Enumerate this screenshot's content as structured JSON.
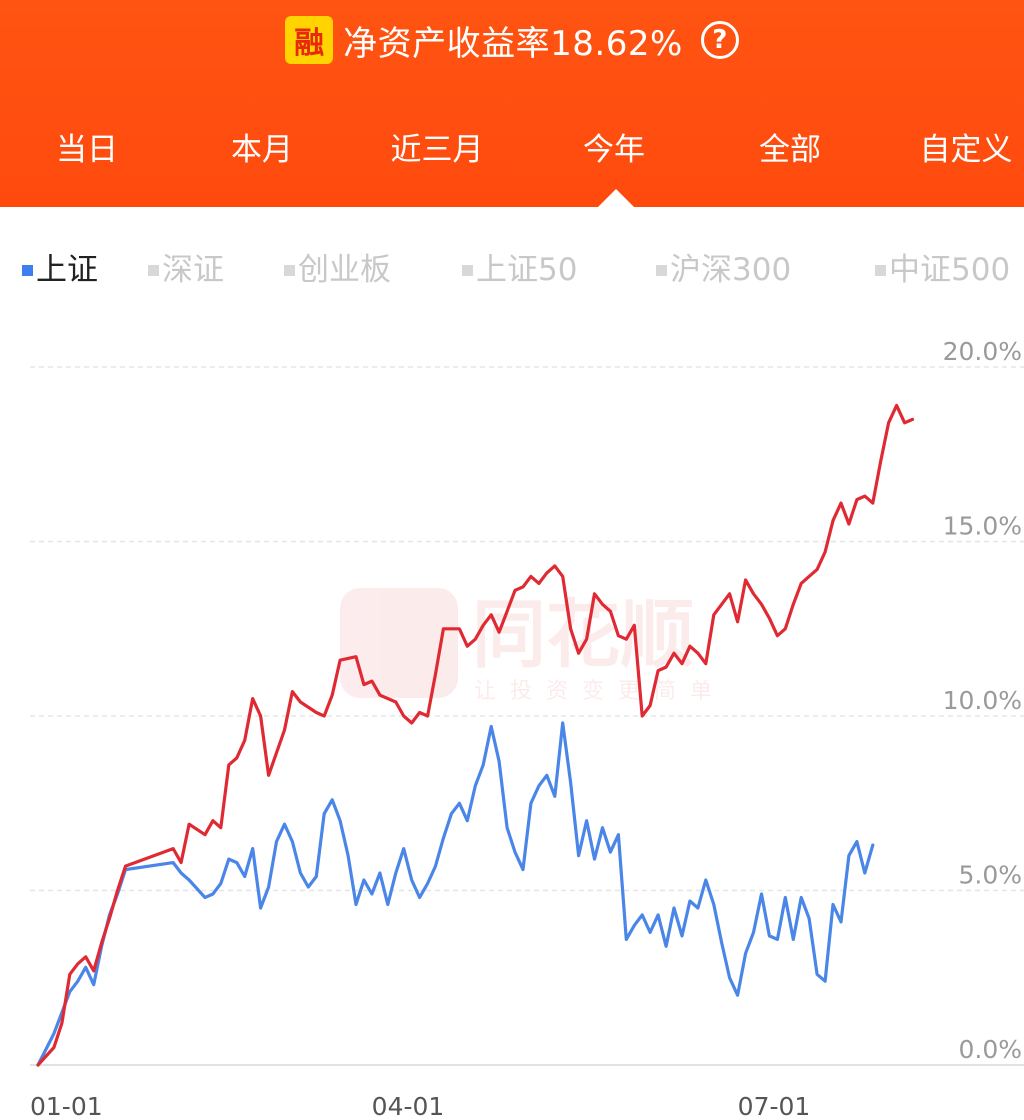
{
  "header": {
    "badge": "融",
    "title": "净资产收益率18.62%",
    "help_icon": "question-circle-icon"
  },
  "tabs": [
    {
      "label": "当日"
    },
    {
      "label": "本月"
    },
    {
      "label": "近三月"
    },
    {
      "label": "今年",
      "selected": true
    },
    {
      "label": "全部"
    },
    {
      "label": "自定义"
    }
  ],
  "indices": [
    {
      "label": "上证",
      "active": true
    },
    {
      "label": "深证"
    },
    {
      "label": "创业板"
    },
    {
      "label": "上证50"
    },
    {
      "label": "沪深300"
    },
    {
      "label": "中证500"
    }
  ],
  "watermark": {
    "text": "同花顺",
    "slogan": "让投资变更简单"
  },
  "colors": {
    "header": "#ff4e10",
    "portfolio_line": "#e02a33",
    "index_line": "#4a86e8"
  },
  "chart_data": {
    "type": "line",
    "x_tick_labels": [
      "01-01",
      "04-01",
      "07-01"
    ],
    "y_tick_labels": [
      "20.0%",
      "15.0%",
      "10.0%",
      "5.0%",
      "0.0%"
    ],
    "ylim": [
      0,
      20
    ],
    "grid": true,
    "series": [
      {
        "color": "#e02a33",
        "points": [
          [
            0,
            0
          ],
          [
            2,
            0.5
          ],
          [
            3,
            1.2
          ],
          [
            4,
            2.6
          ],
          [
            5,
            2.9
          ],
          [
            6,
            3.1
          ],
          [
            7,
            2.7
          ],
          [
            8,
            3.5
          ],
          [
            9,
            4.2
          ],
          [
            10,
            5.0
          ],
          [
            11,
            5.7
          ],
          [
            17,
            6.2
          ],
          [
            18,
            5.8
          ],
          [
            19,
            6.9
          ],
          [
            21,
            6.6
          ],
          [
            22,
            7.0
          ],
          [
            23,
            6.8
          ],
          [
            24,
            8.6
          ],
          [
            25,
            8.8
          ],
          [
            26,
            9.3
          ],
          [
            27,
            10.5
          ],
          [
            28,
            10.0
          ],
          [
            29,
            8.3
          ],
          [
            31,
            9.6
          ],
          [
            32,
            10.7
          ],
          [
            33,
            10.4
          ],
          [
            35,
            10.1
          ],
          [
            36,
            10.0
          ],
          [
            37,
            10.6
          ],
          [
            38,
            11.6
          ],
          [
            40,
            11.7
          ],
          [
            41,
            10.9
          ],
          [
            42,
            11.0
          ],
          [
            43,
            10.6
          ],
          [
            45,
            10.4
          ],
          [
            46,
            10.0
          ],
          [
            47,
            9.8
          ],
          [
            48,
            10.1
          ],
          [
            49,
            10.0
          ],
          [
            50,
            11.2
          ],
          [
            51,
            12.5
          ],
          [
            53,
            12.5
          ],
          [
            54,
            12.0
          ],
          [
            55,
            12.2
          ],
          [
            56,
            12.6
          ],
          [
            57,
            12.9
          ],
          [
            58,
            12.4
          ],
          [
            59,
            13.0
          ],
          [
            60,
            13.6
          ],
          [
            61,
            13.7
          ],
          [
            62,
            14.0
          ],
          [
            63,
            13.8
          ],
          [
            64,
            14.1
          ],
          [
            65,
            14.3
          ],
          [
            66,
            14.0
          ],
          [
            67,
            12.5
          ],
          [
            68,
            11.8
          ],
          [
            69,
            12.2
          ],
          [
            70,
            13.5
          ],
          [
            71,
            13.2
          ],
          [
            72,
            13.0
          ],
          [
            73,
            12.3
          ],
          [
            74,
            12.2
          ],
          [
            75,
            12.6
          ],
          [
            76,
            10.0
          ],
          [
            77,
            10.3
          ],
          [
            78,
            11.3
          ],
          [
            79,
            11.4
          ],
          [
            80,
            11.8
          ],
          [
            81,
            11.5
          ],
          [
            82,
            12.0
          ],
          [
            83,
            11.8
          ],
          [
            84,
            11.5
          ],
          [
            85,
            12.9
          ],
          [
            86,
            13.2
          ],
          [
            87,
            13.5
          ],
          [
            88,
            12.7
          ],
          [
            89,
            13.9
          ],
          [
            90,
            13.5
          ],
          [
            91,
            13.2
          ],
          [
            92,
            12.8
          ],
          [
            93,
            12.3
          ],
          [
            94,
            12.5
          ],
          [
            95,
            13.2
          ],
          [
            96,
            13.8
          ],
          [
            97,
            14.0
          ],
          [
            98,
            14.2
          ],
          [
            99,
            14.7
          ],
          [
            100,
            15.6
          ],
          [
            101,
            16.1
          ],
          [
            102,
            15.5
          ],
          [
            103,
            16.2
          ],
          [
            104,
            16.3
          ],
          [
            105,
            16.1
          ],
          [
            106,
            17.3
          ],
          [
            107,
            18.4
          ],
          [
            108,
            18.9
          ],
          [
            109,
            18.4
          ],
          [
            110,
            18.5
          ]
        ]
      },
      {
        "color": "#4a86e8",
        "points": [
          [
            0,
            0
          ],
          [
            2,
            0.9
          ],
          [
            3,
            1.5
          ],
          [
            4,
            2.1
          ],
          [
            5,
            2.4
          ],
          [
            6,
            2.8
          ],
          [
            7,
            2.3
          ],
          [
            8,
            3.4
          ],
          [
            9,
            4.3
          ],
          [
            10,
            4.9
          ],
          [
            11,
            5.6
          ],
          [
            17,
            5.8
          ],
          [
            18,
            5.5
          ],
          [
            19,
            5.3
          ],
          [
            21,
            4.8
          ],
          [
            22,
            4.9
          ],
          [
            23,
            5.2
          ],
          [
            24,
            5.9
          ],
          [
            25,
            5.8
          ],
          [
            26,
            5.4
          ],
          [
            27,
            6.2
          ],
          [
            28,
            4.5
          ],
          [
            29,
            5.1
          ],
          [
            30,
            6.4
          ],
          [
            31,
            6.9
          ],
          [
            32,
            6.4
          ],
          [
            33,
            5.5
          ],
          [
            34,
            5.1
          ],
          [
            35,
            5.4
          ],
          [
            36,
            7.2
          ],
          [
            37,
            7.6
          ],
          [
            38,
            7.0
          ],
          [
            39,
            6.0
          ],
          [
            40,
            4.6
          ],
          [
            41,
            5.3
          ],
          [
            42,
            4.9
          ],
          [
            43,
            5.5
          ],
          [
            44,
            4.6
          ],
          [
            45,
            5.5
          ],
          [
            46,
            6.2
          ],
          [
            47,
            5.3
          ],
          [
            48,
            4.8
          ],
          [
            49,
            5.2
          ],
          [
            50,
            5.7
          ],
          [
            51,
            6.5
          ],
          [
            52,
            7.2
          ],
          [
            53,
            7.5
          ],
          [
            54,
            7.0
          ],
          [
            55,
            8.0
          ],
          [
            56,
            8.6
          ],
          [
            57,
            9.7
          ],
          [
            58,
            8.7
          ],
          [
            59,
            6.8
          ],
          [
            60,
            6.1
          ],
          [
            61,
            5.6
          ],
          [
            62,
            7.5
          ],
          [
            63,
            8.0
          ],
          [
            64,
            8.3
          ],
          [
            65,
            7.7
          ],
          [
            66,
            9.8
          ],
          [
            67,
            8.1
          ],
          [
            68,
            6.0
          ],
          [
            69,
            7.0
          ],
          [
            70,
            5.9
          ],
          [
            71,
            6.8
          ],
          [
            72,
            6.1
          ],
          [
            73,
            6.6
          ],
          [
            74,
            3.6
          ],
          [
            75,
            4.0
          ],
          [
            76,
            4.3
          ],
          [
            77,
            3.8
          ],
          [
            78,
            4.3
          ],
          [
            79,
            3.4
          ],
          [
            80,
            4.5
          ],
          [
            81,
            3.7
          ],
          [
            82,
            4.7
          ],
          [
            83,
            4.5
          ],
          [
            84,
            5.3
          ],
          [
            85,
            4.6
          ],
          [
            86,
            3.5
          ],
          [
            87,
            2.5
          ],
          [
            88,
            2.0
          ],
          [
            89,
            3.2
          ],
          [
            90,
            3.8
          ],
          [
            91,
            4.9
          ],
          [
            92,
            3.7
          ],
          [
            93,
            3.6
          ],
          [
            94,
            4.8
          ],
          [
            95,
            3.6
          ],
          [
            96,
            4.8
          ],
          [
            97,
            4.2
          ],
          [
            98,
            2.6
          ],
          [
            99,
            2.4
          ],
          [
            100,
            4.6
          ],
          [
            101,
            4.1
          ],
          [
            102,
            6.0
          ],
          [
            103,
            6.4
          ],
          [
            104,
            5.5
          ],
          [
            105,
            6.3
          ]
        ]
      }
    ]
  }
}
